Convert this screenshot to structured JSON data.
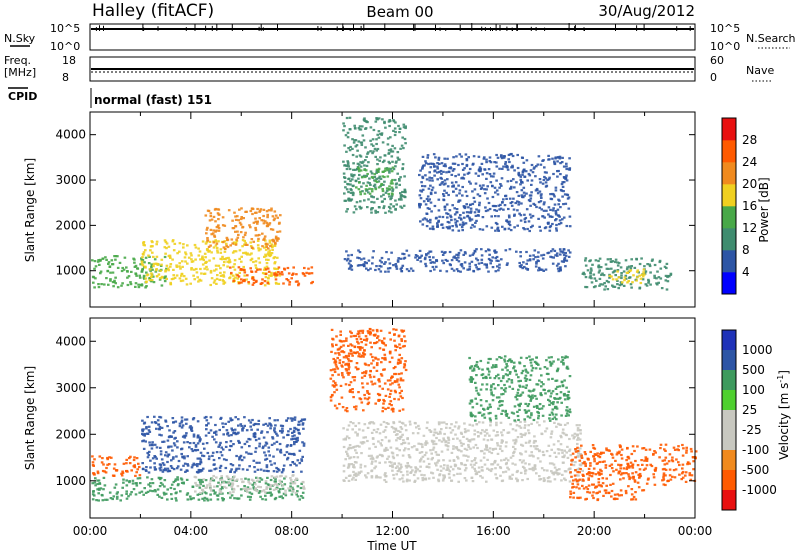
{
  "header": {
    "station": "Halley (fitACF)",
    "beam": "Beam 00",
    "date": "30/Aug/2012"
  },
  "top_panels": {
    "nsky": {
      "label": "N.Sky",
      "tick_top": "10^5",
      "tick_bottom": "10^0"
    },
    "nsearch": {
      "label": "N.Search",
      "tick_top": "10^5",
      "tick_bottom": "10^0"
    },
    "freq": {
      "label_line1": "Freq.",
      "label_line2": "[MHz]",
      "tick_top": "18",
      "tick_bottom": "8"
    },
    "nave": {
      "label": "Nave",
      "tick_top": "60",
      "tick_bottom": "0"
    },
    "cpid": {
      "label": "CPID",
      "value": "normal (fast) 151"
    }
  },
  "time_axis": {
    "label": "Time UT",
    "ticks": [
      "00:00",
      "04:00",
      "08:00",
      "12:00",
      "16:00",
      "20:00",
      "00:00"
    ]
  },
  "colors": {
    "power_scale": [
      "#0000ff",
      "#2d55a5",
      "#3f8c6f",
      "#48a848",
      "#f0d020",
      "#f08a1e",
      "#ff5a00",
      "#e81010"
    ],
    "velocity_scale": [
      "#e81010",
      "#ff5a00",
      "#f08a1e",
      "#c8c8c0",
      "#c8c8c0",
      "#4fcf2f",
      "#3e9a5e",
      "#2d55a5",
      "#1f32b8"
    ]
  },
  "chart_data": [
    {
      "type": "heatmap",
      "title": "Power",
      "ylabel": "Slant Range [km]",
      "xlabel": "",
      "x_range_hours": [
        0,
        24
      ],
      "ylim": [
        200,
        4500
      ],
      "y_ticks": [
        "1000",
        "2000",
        "3000",
        "4000"
      ],
      "colorbar": {
        "label": "Power [dB]",
        "ticks": [
          "4",
          "8",
          "12",
          "16",
          "20",
          "24",
          "28"
        ],
        "range": [
          0,
          32
        ]
      },
      "features": [
        {
          "t_start": 0.0,
          "t_end": 3.0,
          "r_low": 650,
          "r_high": 1350,
          "level_db": 12
        },
        {
          "t_start": 2.0,
          "t_end": 7.5,
          "r_low": 700,
          "r_high": 1700,
          "level_db": 18
        },
        {
          "t_start": 4.5,
          "t_end": 7.5,
          "r_low": 1500,
          "r_high": 2400,
          "level_db": 22
        },
        {
          "t_start": 5.5,
          "t_end": 8.8,
          "r_low": 700,
          "r_high": 1100,
          "level_db": 24
        },
        {
          "t_start": 10.0,
          "t_end": 12.5,
          "r_low": 2300,
          "r_high": 4400,
          "level_db": 9
        },
        {
          "t_start": 10.5,
          "t_end": 12.0,
          "r_low": 2700,
          "r_high": 3300,
          "level_db": 12
        },
        {
          "t_start": 10.0,
          "t_end": 19.0,
          "r_low": 1000,
          "r_high": 1500,
          "level_db": 6
        },
        {
          "t_start": 13.0,
          "t_end": 19.0,
          "r_low": 1900,
          "r_high": 3600,
          "level_db": 7
        },
        {
          "t_start": 19.5,
          "t_end": 23.0,
          "r_low": 600,
          "r_high": 1300,
          "level_db": 10
        },
        {
          "t_start": 20.5,
          "t_end": 22.0,
          "r_low": 750,
          "r_high": 1050,
          "level_db": 18
        }
      ]
    },
    {
      "type": "heatmap",
      "title": "Velocity",
      "ylabel": "Slant Range [km]",
      "xlabel": "Time UT",
      "x_range_hours": [
        0,
        24
      ],
      "ylim": [
        200,
        4500
      ],
      "y_ticks": [
        "1000",
        "2000",
        "3000",
        "4000"
      ],
      "colorbar": {
        "label": "Velocity [m s^-1]",
        "ticks": [
          "1000",
          "500",
          "100",
          "25",
          "-25",
          "-100",
          "-500",
          "-1000"
        ]
      },
      "features": [
        {
          "t_start": 0.0,
          "t_end": 2.0,
          "r_low": 1100,
          "r_high": 1550,
          "velocity": -400
        },
        {
          "t_start": 0.0,
          "t_end": 8.5,
          "r_low": 600,
          "r_high": 1100,
          "velocity": 80
        },
        {
          "t_start": 2.0,
          "t_end": 8.5,
          "r_low": 1200,
          "r_high": 2400,
          "velocity": 500
        },
        {
          "t_start": 4.0,
          "t_end": 8.5,
          "r_low": 750,
          "r_high": 1150,
          "velocity": 0
        },
        {
          "t_start": 9.5,
          "t_end": 12.5,
          "r_low": 2500,
          "r_high": 4300,
          "velocity": -400
        },
        {
          "t_start": 10.0,
          "t_end": 19.5,
          "r_low": 1000,
          "r_high": 2300,
          "velocity": 0
        },
        {
          "t_start": 15.0,
          "t_end": 19.0,
          "r_low": 2300,
          "r_high": 3700,
          "velocity": 100
        },
        {
          "t_start": 19.0,
          "t_end": 24.0,
          "r_low": 900,
          "r_high": 1800,
          "velocity": -400
        },
        {
          "t_start": 19.0,
          "t_end": 22.0,
          "r_low": 600,
          "r_high": 900,
          "velocity": -200
        }
      ]
    }
  ]
}
